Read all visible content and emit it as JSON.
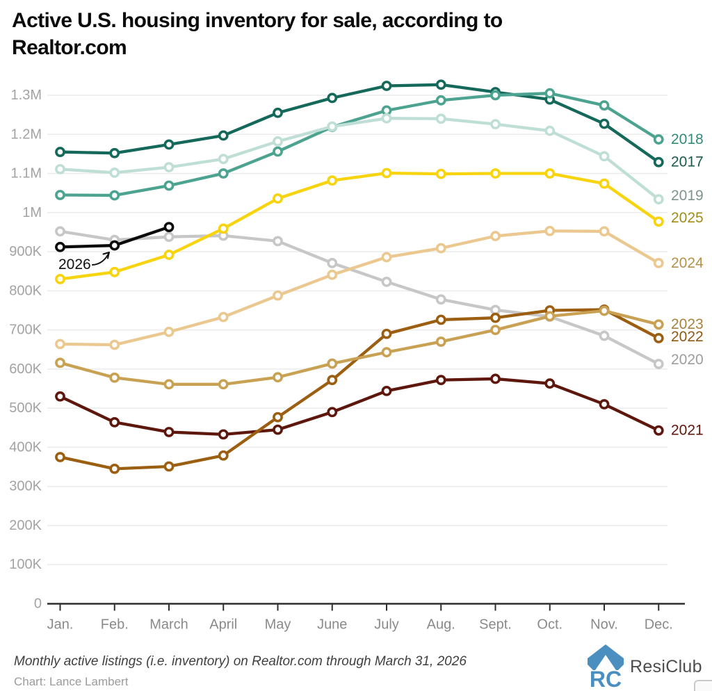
{
  "title": {
    "line1": "Active U.S. housing inventory for sale, according to",
    "line2": "Realtor.com"
  },
  "annotation": {
    "label": "2026"
  },
  "footer": {
    "note": "Monthly active listings (i.e. inventory) on Realtor.com through March 31, 2026",
    "credit": "Chart: Lance Lambert",
    "logo_text": "ResiClub",
    "logo_icon": "resiclub-house-rc-logo",
    "expand_icon": "expand-horizontal-icon"
  },
  "chart_data": {
    "type": "line",
    "title": "Active U.S. housing inventory for sale, according to Realtor.com",
    "unit": "active listings (values in thousands)",
    "grid": "horizontal",
    "legend_position": "right-edge-year-labels",
    "x_categories": [
      "Jan.",
      "Feb.",
      "March",
      "April",
      "May",
      "June",
      "July",
      "Aug.",
      "Sept.",
      "Oct.",
      "Nov.",
      "Dec."
    ],
    "y_tick_labels": [
      "1.3M",
      "1.2M",
      "1.1M",
      "1M",
      "900K",
      "800K",
      "700K",
      "600K",
      "500K",
      "400K",
      "300K",
      "200K",
      "100K",
      "0"
    ],
    "y_tick_values": [
      1300,
      1200,
      1100,
      1000,
      900,
      800,
      700,
      600,
      500,
      400,
      300,
      200,
      100,
      0
    ],
    "ylim": [
      0,
      1380
    ],
    "colors": {
      "grid": "#ebebeb",
      "axis": "#2e2e2e",
      "y_labels": "#a3a3a3",
      "x_labels": "#8a8a8a",
      "logo_blue": "#4a8fc0"
    },
    "series": [
      {
        "name": "2017",
        "color": "#15695B",
        "label_color": "#1B5A4D",
        "values": [
          1155,
          1152,
          1174,
          1197,
          1255,
          1293,
          1324,
          1327,
          1308,
          1289,
          1227,
          1129
        ]
      },
      {
        "name": "2018",
        "color": "#4BA390",
        "label_color": "#338B79",
        "values": [
          1045,
          1044,
          1069,
          1100,
          1156,
          1219,
          1261,
          1287,
          1300,
          1305,
          1274,
          1187
        ]
      },
      {
        "name": "2019",
        "color": "#BFDFD6",
        "label_color": "#7E948D",
        "values": [
          1111,
          1102,
          1116,
          1137,
          1182,
          1220,
          1241,
          1240,
          1226,
          1209,
          1144,
          1034
        ]
      },
      {
        "name": "2020",
        "color": "#C7C7C7",
        "label_color": "#9D9D9D",
        "values": [
          952,
          930,
          938,
          941,
          927,
          871,
          823,
          778,
          751,
          734,
          685,
          613
        ]
      },
      {
        "name": "2021",
        "color": "#5E170D",
        "label_color": "#5E170D",
        "values": [
          530,
          464,
          439,
          433,
          445,
          490,
          544,
          572,
          575,
          563,
          510,
          443
        ]
      },
      {
        "name": "2022",
        "color": "#9C5E10",
        "label_color": "#8F5A10",
        "values": [
          375,
          345,
          351,
          379,
          477,
          572,
          690,
          726,
          731,
          750,
          752,
          679
        ]
      },
      {
        "name": "2023",
        "color": "#C9A153",
        "label_color": "#A8823C",
        "values": [
          616,
          578,
          561,
          561,
          579,
          614,
          643,
          670,
          700,
          735,
          749,
          714
        ]
      },
      {
        "name": "2024",
        "color": "#EBC88F",
        "label_color": "#B6914B",
        "values": [
          664,
          662,
          695,
          733,
          788,
          841,
          886,
          909,
          940,
          953,
          952,
          871
        ]
      },
      {
        "name": "2025",
        "color": "#F7D40E",
        "label_color": "#A18C17",
        "values": [
          830,
          848,
          892,
          959,
          1036,
          1082,
          1101,
          1099,
          1100,
          1100,
          1074,
          977
        ]
      },
      {
        "name": "2026",
        "color": "#0B0B0B",
        "label_color": "#0B0B0B",
        "values": [
          912,
          916,
          963
        ]
      }
    ]
  }
}
